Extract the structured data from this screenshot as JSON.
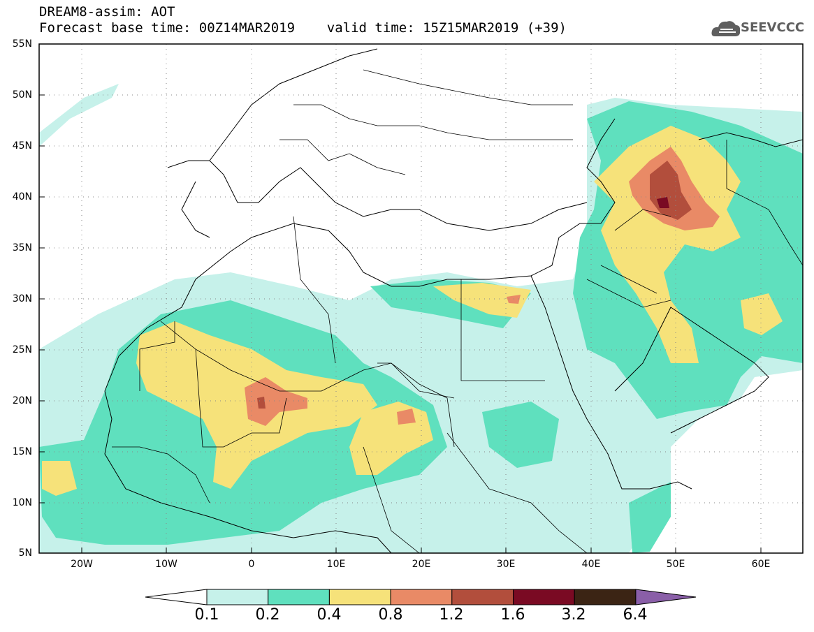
{
  "title": {
    "line1": "DREAM8-assim: AOT",
    "line2": "Forecast base time: 00Z14MAR2019    valid time: 15Z15MAR2019 (+39)"
  },
  "logo": {
    "text": "SEEVCCC",
    "icon": "cloud-icon"
  },
  "map": {
    "lat_ticks": [
      "55N",
      "50N",
      "45N",
      "40N",
      "35N",
      "30N",
      "25N",
      "20N",
      "15N",
      "10N",
      "5N"
    ],
    "lon_ticks": [
      "20W",
      "10W",
      "0",
      "10E",
      "20E",
      "30E",
      "40E",
      "50E",
      "60E"
    ],
    "lat_range": [
      5,
      55
    ],
    "lon_range": [
      -25,
      65
    ],
    "grid": true
  },
  "colorbar": {
    "labels": [
      "0.1",
      "0.2",
      "0.4",
      "0.8",
      "1.2",
      "1.6",
      "3.2",
      "6.4"
    ],
    "colors": [
      "#ffffff",
      "#c6f1ea",
      "#5fe0be",
      "#f6e27a",
      "#e98a66",
      "#b24e3c",
      "#7a0a23",
      "#3b2414",
      "#8a5fa8"
    ]
  }
}
